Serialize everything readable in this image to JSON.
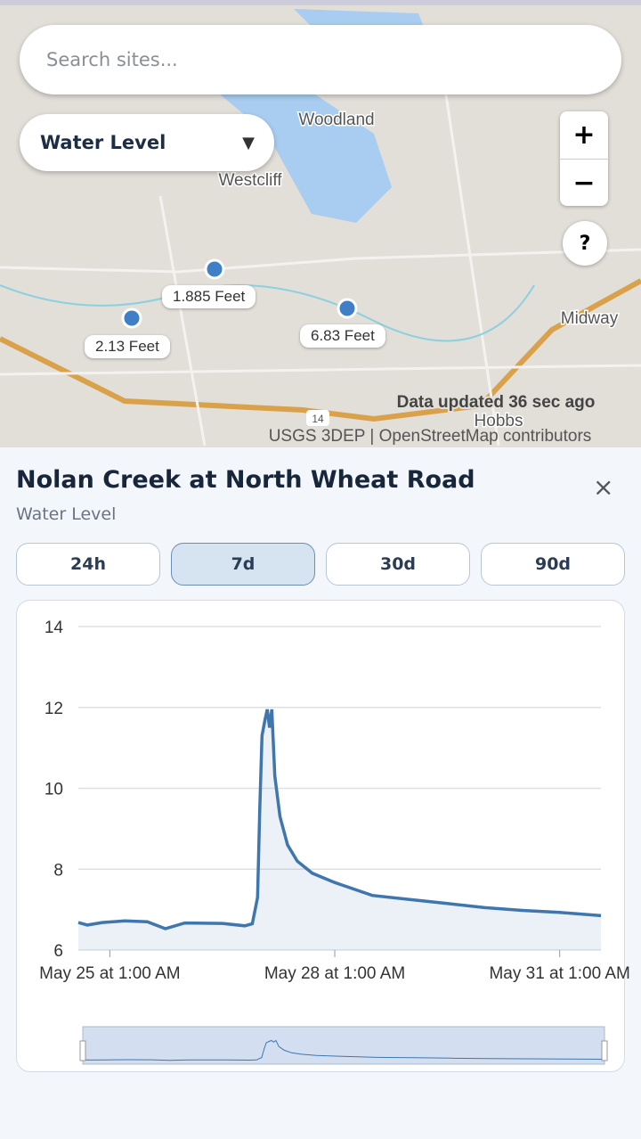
{
  "search": {
    "placeholder": "Search sites..."
  },
  "layer_select": {
    "label": "Water Level",
    "arrow": "▼"
  },
  "zoom": {
    "in": "+",
    "out": "−"
  },
  "help": "?",
  "map": {
    "places": [
      "Woodland",
      "Westcliff",
      "Midway",
      "Hobbs"
    ],
    "highway": "14",
    "sites": [
      "1.885 Feet",
      "2.13 Feet",
      "6.83 Feet"
    ],
    "status": "Data updated 36 sec ago",
    "attribution": "USGS 3DEP | OpenStreetMap contributors"
  },
  "panel": {
    "title": "Nolan Creek at North Wheat Road",
    "subtitle": "Water Level",
    "close": "×",
    "tabs": [
      "24h",
      "7d",
      "30d",
      "90d"
    ],
    "active_tab": "7d"
  },
  "chart_data": {
    "type": "line",
    "x": [
      24.58,
      24.7,
      24.9,
      25.2,
      25.5,
      25.74,
      26.0,
      26.5,
      26.8,
      26.9,
      26.97,
      27.0,
      27.03,
      27.07,
      27.1,
      27.13,
      27.16,
      27.2,
      27.27,
      27.37,
      27.5,
      27.7,
      28.0,
      28.5,
      29.0,
      29.5,
      30.0,
      30.5,
      31.0,
      31.55
    ],
    "series": [
      {
        "name": "Water Level",
        "color": "#3f76ad",
        "values": [
          6.68,
          6.62,
          6.68,
          6.72,
          6.7,
          6.53,
          6.67,
          6.66,
          6.6,
          6.65,
          7.3,
          9.5,
          11.3,
          11.7,
          11.95,
          11.5,
          11.95,
          10.3,
          9.3,
          8.6,
          8.2,
          7.9,
          7.67,
          7.35,
          7.25,
          7.15,
          7.05,
          6.98,
          6.93,
          6.85
        ]
      }
    ],
    "xlim": [
      24.58,
      31.55
    ],
    "xticks": [
      {
        "value": 25,
        "label": "May 25 at 1:00 AM"
      },
      {
        "value": 28,
        "label": "May 28 at 1:00 AM"
      },
      {
        "value": 31,
        "label": "May 31 at 1:00 AM"
      }
    ],
    "ylim": [
      6,
      14
    ],
    "yticks": [
      6,
      8,
      10,
      12,
      14
    ],
    "grid": true
  }
}
